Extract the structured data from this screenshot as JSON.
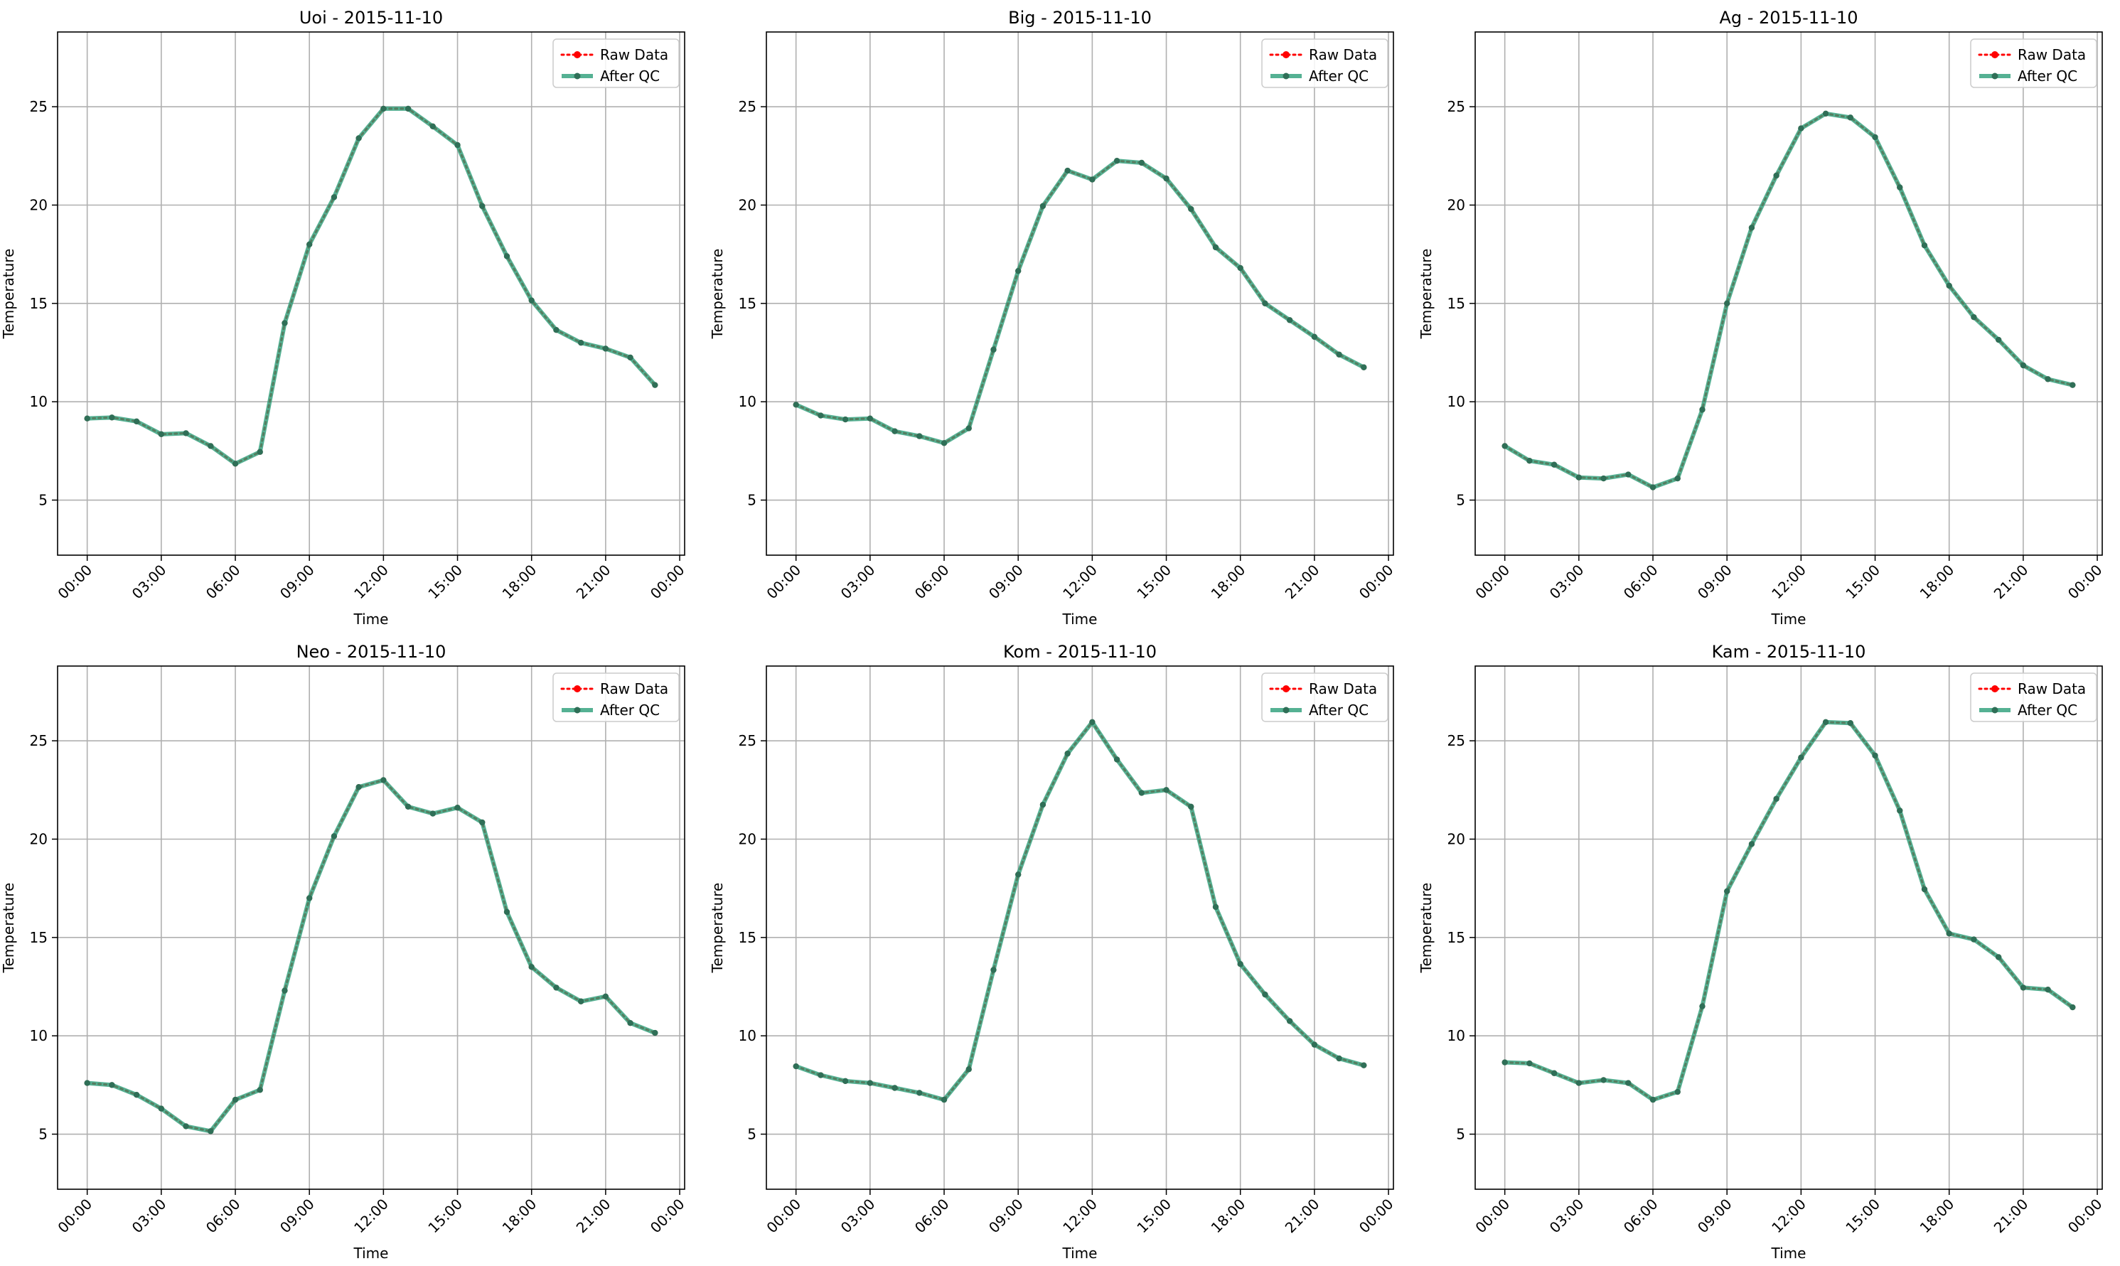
{
  "legend_labels": {
    "raw": "Raw Data",
    "qc": "After QC"
  },
  "x_tick_labels": [
    "00:00",
    "03:00",
    "06:00",
    "09:00",
    "12:00",
    "15:00",
    "18:00",
    "21:00",
    "00:00"
  ],
  "colors": {
    "raw": "#ff0000",
    "qc": "#2a9d78",
    "marker": "#2f6f57",
    "grid": "#b0b0b0"
  },
  "chart_data": [
    {
      "type": "line",
      "title": "Uoi - 2015-11-10",
      "xlabel": "Time",
      "ylabel": "Temperature",
      "x_hours": [
        0,
        1,
        2,
        3,
        4,
        5,
        6,
        7,
        8,
        9,
        10,
        11,
        12,
        13,
        14,
        15,
        16,
        17,
        18,
        19,
        20,
        21,
        22,
        23
      ],
      "ylim": [
        2.2,
        28.8
      ],
      "yticks": [
        5,
        10,
        15,
        20,
        25
      ],
      "xlim_hours": [
        -1.2,
        24.2
      ],
      "grid": true,
      "legend_position": "top-right",
      "series": [
        {
          "name": "Raw Data",
          "values": [
            9.15,
            9.2,
            9.0,
            8.35,
            8.4,
            7.75,
            6.85,
            7.45,
            14.0,
            18.0,
            20.4,
            23.4,
            24.9,
            24.9,
            24.0,
            23.05,
            19.95,
            17.4,
            15.15,
            13.65,
            13.0,
            12.7,
            12.25,
            10.85
          ]
        },
        {
          "name": "After QC",
          "values": [
            9.15,
            9.2,
            9.0,
            8.35,
            8.4,
            7.75,
            6.85,
            7.45,
            14.0,
            18.0,
            20.4,
            23.4,
            24.9,
            24.9,
            24.0,
            23.05,
            19.95,
            17.4,
            15.15,
            13.65,
            13.0,
            12.7,
            12.25,
            10.85
          ]
        }
      ]
    },
    {
      "type": "line",
      "title": "Big - 2015-11-10",
      "xlabel": "Time",
      "ylabel": "Temperature",
      "x_hours": [
        0,
        1,
        2,
        3,
        4,
        5,
        6,
        7,
        8,
        9,
        10,
        11,
        12,
        13,
        14,
        15,
        16,
        17,
        18,
        19,
        20,
        21,
        22,
        23
      ],
      "ylim": [
        2.2,
        28.8
      ],
      "yticks": [
        5,
        10,
        15,
        20,
        25
      ],
      "xlim_hours": [
        -1.2,
        24.2
      ],
      "grid": true,
      "legend_position": "top-right",
      "series": [
        {
          "name": "Raw Data",
          "values": [
            9.85,
            9.3,
            9.1,
            9.15,
            8.5,
            8.25,
            7.9,
            8.65,
            12.65,
            16.65,
            19.95,
            21.75,
            21.3,
            22.25,
            22.15,
            21.35,
            19.8,
            17.85,
            16.8,
            15.0,
            14.15,
            13.3,
            12.4,
            11.75
          ]
        },
        {
          "name": "After QC",
          "values": [
            9.85,
            9.3,
            9.1,
            9.15,
            8.5,
            8.25,
            7.9,
            8.65,
            12.65,
            16.65,
            19.95,
            21.75,
            21.3,
            22.25,
            22.15,
            21.35,
            19.8,
            17.85,
            16.8,
            15.0,
            14.15,
            13.3,
            12.4,
            11.75
          ]
        }
      ]
    },
    {
      "type": "line",
      "title": "Ag - 2015-11-10",
      "xlabel": "Time",
      "ylabel": "Temperature",
      "x_hours": [
        0,
        1,
        2,
        3,
        4,
        5,
        6,
        7,
        8,
        9,
        10,
        11,
        12,
        13,
        14,
        15,
        16,
        17,
        18,
        19,
        20,
        21,
        22,
        23
      ],
      "ylim": [
        2.2,
        28.8
      ],
      "yticks": [
        5,
        10,
        15,
        20,
        25
      ],
      "xlim_hours": [
        -1.2,
        24.2
      ],
      "grid": true,
      "legend_position": "top-right",
      "series": [
        {
          "name": "Raw Data",
          "values": [
            7.75,
            7.0,
            6.8,
            6.15,
            6.1,
            6.3,
            5.65,
            6.1,
            9.6,
            15.0,
            18.85,
            21.5,
            23.9,
            24.65,
            24.45,
            23.45,
            20.9,
            17.95,
            15.9,
            14.3,
            13.15,
            11.85,
            11.15,
            10.85
          ]
        },
        {
          "name": "After QC",
          "values": [
            7.75,
            7.0,
            6.8,
            6.15,
            6.1,
            6.3,
            5.65,
            6.1,
            9.6,
            15.0,
            18.85,
            21.5,
            23.9,
            24.65,
            24.45,
            23.45,
            20.9,
            17.95,
            15.9,
            14.3,
            13.15,
            11.85,
            11.15,
            10.85
          ]
        }
      ]
    },
    {
      "type": "line",
      "title": "Neo - 2015-11-10",
      "xlabel": "Time",
      "ylabel": "Temperature",
      "x_hours": [
        0,
        1,
        2,
        3,
        4,
        5,
        6,
        7,
        8,
        9,
        10,
        11,
        12,
        13,
        14,
        15,
        16,
        17,
        18,
        19,
        20,
        21,
        22,
        23
      ],
      "ylim": [
        2.2,
        28.8
      ],
      "yticks": [
        5,
        10,
        15,
        20,
        25
      ],
      "xlim_hours": [
        -1.2,
        24.2
      ],
      "grid": true,
      "legend_position": "top-right",
      "series": [
        {
          "name": "Raw Data",
          "values": [
            7.6,
            7.5,
            7.0,
            6.3,
            5.4,
            5.15,
            6.75,
            7.25,
            12.3,
            17.0,
            20.15,
            22.65,
            23.0,
            21.65,
            21.3,
            21.6,
            20.85,
            16.3,
            13.5,
            12.45,
            11.75,
            12.0,
            10.65,
            10.15
          ]
        },
        {
          "name": "After QC",
          "values": [
            7.6,
            7.5,
            7.0,
            6.3,
            5.4,
            5.15,
            6.75,
            7.25,
            12.3,
            17.0,
            20.15,
            22.65,
            23.0,
            21.65,
            21.3,
            21.6,
            20.85,
            16.3,
            13.5,
            12.45,
            11.75,
            12.0,
            10.65,
            10.15
          ]
        }
      ]
    },
    {
      "type": "line",
      "title": "Kom - 2015-11-10",
      "xlabel": "Time",
      "ylabel": "Temperature",
      "x_hours": [
        0,
        1,
        2,
        3,
        4,
        5,
        6,
        7,
        8,
        9,
        10,
        11,
        12,
        13,
        14,
        15,
        16,
        17,
        18,
        19,
        20,
        21,
        22,
        23
      ],
      "ylim": [
        2.2,
        28.8
      ],
      "yticks": [
        5,
        10,
        15,
        20,
        25
      ],
      "xlim_hours": [
        -1.2,
        24.2
      ],
      "grid": true,
      "legend_position": "top-right",
      "series": [
        {
          "name": "Raw Data",
          "values": [
            8.45,
            8.0,
            7.7,
            7.6,
            7.35,
            7.1,
            6.75,
            8.3,
            13.35,
            18.2,
            21.75,
            24.35,
            25.95,
            24.05,
            22.35,
            22.5,
            21.65,
            16.55,
            13.65,
            12.1,
            10.75,
            9.55,
            8.85,
            8.5
          ]
        },
        {
          "name": "After QC",
          "values": [
            8.45,
            8.0,
            7.7,
            7.6,
            7.35,
            7.1,
            6.75,
            8.3,
            13.35,
            18.2,
            21.75,
            24.35,
            25.95,
            24.05,
            22.35,
            22.5,
            21.65,
            16.55,
            13.65,
            12.1,
            10.75,
            9.55,
            8.85,
            8.5
          ]
        }
      ]
    },
    {
      "type": "line",
      "title": "Kam - 2015-11-10",
      "xlabel": "Time",
      "ylabel": "Temperature",
      "x_hours": [
        0,
        1,
        2,
        3,
        4,
        5,
        6,
        7,
        8,
        9,
        10,
        11,
        12,
        13,
        14,
        15,
        16,
        17,
        18,
        19,
        20,
        21,
        22,
        23
      ],
      "ylim": [
        2.2,
        28.8
      ],
      "yticks": [
        5,
        10,
        15,
        20,
        25
      ],
      "xlim_hours": [
        -1.2,
        24.2
      ],
      "grid": true,
      "legend_position": "top-right",
      "series": [
        {
          "name": "Raw Data",
          "values": [
            8.65,
            8.6,
            8.1,
            7.6,
            7.75,
            7.6,
            6.75,
            7.15,
            11.5,
            17.35,
            19.75,
            22.05,
            24.15,
            25.95,
            25.9,
            24.25,
            21.45,
            17.45,
            15.2,
            14.9,
            14.0,
            12.45,
            12.35,
            11.45
          ]
        },
        {
          "name": "After QC",
          "values": [
            8.65,
            8.6,
            8.1,
            7.6,
            7.75,
            7.6,
            6.75,
            7.15,
            11.5,
            17.35,
            19.75,
            22.05,
            24.15,
            25.95,
            25.9,
            24.25,
            21.45,
            17.45,
            15.2,
            14.9,
            14.0,
            12.45,
            12.35,
            11.45
          ]
        }
      ]
    }
  ]
}
